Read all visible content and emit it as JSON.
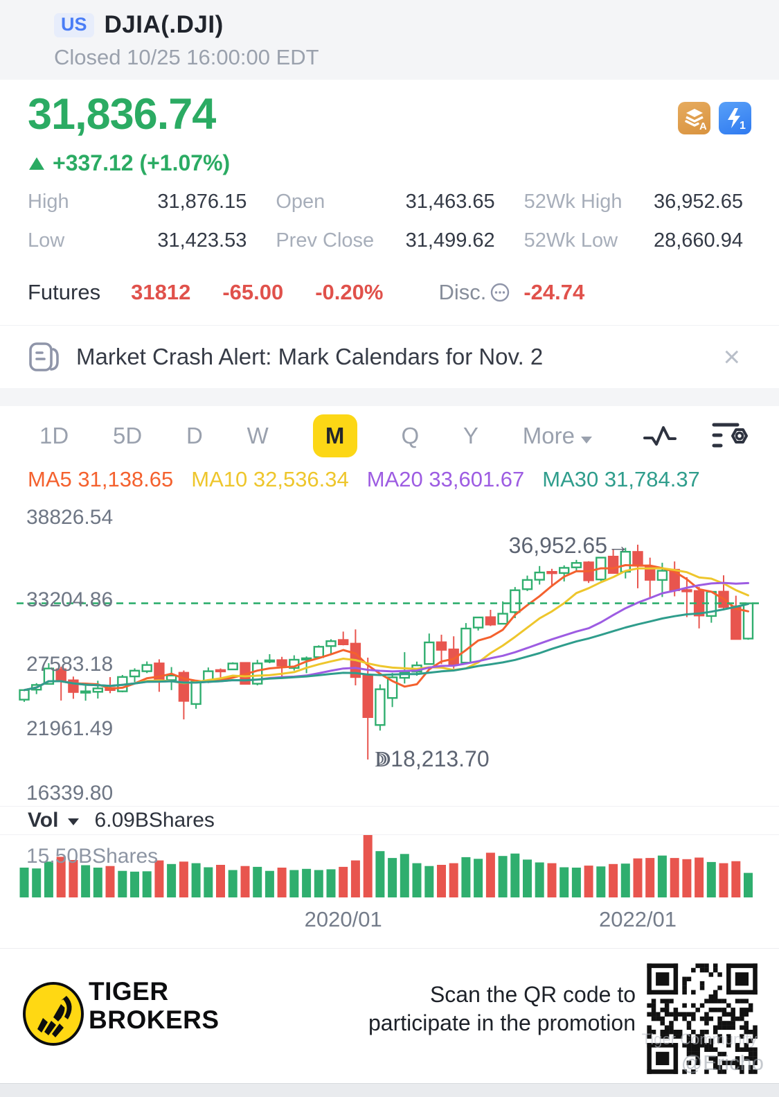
{
  "colors": {
    "up": "#2fae6e",
    "down": "#e8554e",
    "price_green": "#2bab63",
    "futures_red": "#e0514b",
    "accent_yellow": "#fcd716",
    "us_badge_blue": "#4a7df6",
    "axis_text": "#6e7684",
    "annotation_text": "#5d6472"
  },
  "header": {
    "market_badge": "US",
    "title": "DJIA(.DJI)",
    "status": "Closed 10/25 16:00:00 EDT"
  },
  "quote": {
    "price": "31,836.74",
    "direction_icon": "up-triangle",
    "change": "+337.12 (+1.07%)",
    "corner_badges": [
      {
        "name": "data-level-a-badge",
        "text": "A",
        "icon": "layers-icon"
      },
      {
        "name": "lightning-1-badge",
        "text": "1",
        "icon": "lightning-icon"
      }
    ],
    "stats": [
      {
        "label": "High",
        "value": "31,876.15"
      },
      {
        "label": "Open",
        "value": "31,463.65"
      },
      {
        "label": "52Wk High",
        "value": "36,952.65"
      },
      {
        "label": "Low",
        "value": "31,423.53"
      },
      {
        "label": "Prev Close",
        "value": "31,499.62"
      },
      {
        "label": "52Wk Low",
        "value": "28,660.94"
      }
    ],
    "futures": {
      "label": "Futures",
      "price": "31812",
      "change": "-65.00",
      "percent": "-0.20%",
      "disc_label": "Disc.",
      "disc_icon": "ellipsis-circle-icon",
      "disc_value": "-24.74"
    }
  },
  "alert": {
    "icon": "news-icon",
    "text": "Market Crash Alert: Mark Calendars for Nov. 2",
    "close_icon": "×"
  },
  "toolbar": {
    "tabs": [
      {
        "label": "1D"
      },
      {
        "label": "5D"
      },
      {
        "label": "D"
      },
      {
        "label": "W"
      },
      {
        "label": "M",
        "selected": true
      },
      {
        "label": "Q"
      },
      {
        "label": "Y"
      },
      {
        "label": "More",
        "caret": true
      }
    ],
    "icons": [
      {
        "name": "line-chart-style-icon"
      },
      {
        "name": "indicator-settings-icon"
      }
    ]
  },
  "indicators": [
    {
      "name": "MA5",
      "value": "31,138.65",
      "color": "#f4612e"
    },
    {
      "name": "MA10",
      "value": "32,536.34",
      "color": "#eec62c"
    },
    {
      "name": "MA20",
      "value": "33,601.67",
      "color": "#9d5ce2"
    },
    {
      "name": "MA30",
      "value": "31,784.37",
      "color": "#2f9d8c"
    }
  ],
  "chart_data": {
    "type": "candlestick",
    "title": "DJIA monthly candlesticks with MA5/10/20/30 overlays and volume",
    "y_axis_labels": [
      "38826.54",
      "33204.86",
      "27583.18",
      "21961.49",
      "16339.80"
    ],
    "y_axis_values": [
      38826.54,
      33204.86,
      27583.18,
      21961.49,
      16339.8
    ],
    "current_price": 31836.74,
    "current_price_line_style": "dashed-green",
    "annotations": [
      {
        "label": "36,952.65→",
        "index": 50,
        "attach": "high",
        "side": "left"
      },
      {
        "label": "ↇ18,213.70",
        "index": 28,
        "attach": "low",
        "side": "right"
      }
    ],
    "x_axis_labels": [
      {
        "label": "2020/01",
        "index": 26
      },
      {
        "label": "2022/01",
        "index": 50
      }
    ],
    "volume_pane": {
      "label": "Vol",
      "selector": "dropdown",
      "current": "6.09BShares",
      "scale_max_label": "15.50BShares",
      "max_value": 15.5,
      "unit": "BShares"
    },
    "ma_periods": [
      {
        "period": 5,
        "color": "#f4612e"
      },
      {
        "period": 10,
        "color": "#eec62c"
      },
      {
        "period": 20,
        "color": "#9d5ce2"
      },
      {
        "period": 30,
        "color": "#2f9d8c"
      }
    ],
    "candle_fields": [
      "month",
      "open",
      "high",
      "low",
      "close",
      "volume_b_shares"
    ],
    "candles": [
      [
        "2017-11",
        23440,
        24327,
        23242,
        24272,
        7.4
      ],
      [
        "2017-12",
        24306,
        24876,
        23921,
        24719,
        7.2
      ],
      [
        "2018-01",
        24809,
        26617,
        24741,
        26149,
        8.9
      ],
      [
        "2018-02",
        26083,
        26306,
        23360,
        25029,
        10.1
      ],
      [
        "2018-03",
        25122,
        25449,
        23509,
        24103,
        9.3
      ],
      [
        "2018-04",
        24076,
        24859,
        23344,
        24163,
        8.0
      ],
      [
        "2018-05",
        24117,
        25086,
        23531,
        24416,
        7.4
      ],
      [
        "2018-06",
        24462,
        25402,
        23997,
        24271,
        7.8
      ],
      [
        "2018-07",
        24161,
        25587,
        24077,
        25415,
        6.6
      ],
      [
        "2018-08",
        25461,
        26167,
        24965,
        25965,
        6.4
      ],
      [
        "2018-09",
        25916,
        26770,
        25754,
        26458,
        6.5
      ],
      [
        "2018-10",
        26598,
        26952,
        24122,
        25116,
        9.2
      ],
      [
        "2018-11",
        25142,
        26277,
        24268,
        25538,
        8.3
      ],
      [
        "2018-12",
        25780,
        25980,
        21713,
        23327,
        8.9
      ],
      [
        "2019-01",
        23058,
        25110,
        22638,
        24999,
        8.5
      ],
      [
        "2019-02",
        25026,
        26241,
        24883,
        25916,
        7.5
      ],
      [
        "2019-03",
        26019,
        26155,
        25208,
        25929,
        8.1
      ],
      [
        "2019-04",
        26075,
        26696,
        26062,
        26593,
        6.8
      ],
      [
        "2019-05",
        26639,
        26689,
        24809,
        24815,
        7.8
      ],
      [
        "2019-06",
        24830,
        26907,
        24680,
        26600,
        7.6
      ],
      [
        "2019-07",
        26805,
        27399,
        26616,
        26864,
        6.6
      ],
      [
        "2019-08",
        26879,
        27175,
        25339,
        26403,
        7.4
      ],
      [
        "2019-09",
        26198,
        27306,
        25978,
        26917,
        6.8
      ],
      [
        "2019-10",
        26962,
        27204,
        25743,
        27046,
        7.1
      ],
      [
        "2019-11",
        27142,
        28174,
        27142,
        28051,
        6.8
      ],
      [
        "2019-12",
        28109,
        28701,
        27325,
        28538,
        7.0
      ],
      [
        "2020-01",
        28639,
        29373,
        28169,
        28256,
        7.6
      ],
      [
        "2020-02",
        28320,
        29568,
        24681,
        25409,
        9.2
      ],
      [
        "2020-03",
        25591,
        27102,
        18214,
        21917,
        15.5
      ],
      [
        "2020-04",
        21227,
        24765,
        20735,
        24346,
        11.5
      ],
      [
        "2020-05",
        23581,
        25758,
        22790,
        25383,
        9.8
      ],
      [
        "2020-06",
        25343,
        27580,
        24843,
        25813,
        10.8
      ],
      [
        "2020-07",
        25880,
        26754,
        25523,
        26428,
        8.5
      ],
      [
        "2020-08",
        26543,
        29201,
        26500,
        28430,
        7.8
      ],
      [
        "2020-09",
        28439,
        29100,
        26537,
        27782,
        8.1
      ],
      [
        "2020-10",
        27816,
        28959,
        26144,
        26502,
        8.5
      ],
      [
        "2020-11",
        26662,
        30117,
        26512,
        29639,
        10.0
      ],
      [
        "2020-12",
        29722,
        30638,
        29464,
        30606,
        9.6
      ],
      [
        "2021-01",
        30628,
        31272,
        29857,
        29983,
        11.1
      ],
      [
        "2021-02",
        30055,
        32010,
        30015,
        30932,
        10.3
      ],
      [
        "2021-03",
        31069,
        33259,
        30547,
        32982,
        10.9
      ],
      [
        "2021-04",
        33073,
        34256,
        32906,
        33875,
        9.4
      ],
      [
        "2021-05",
        33896,
        35092,
        33474,
        34529,
        8.7
      ],
      [
        "2021-06",
        34584,
        34849,
        33272,
        34503,
        8.5
      ],
      [
        "2021-07",
        34480,
        35150,
        33742,
        34935,
        7.5
      ],
      [
        "2021-08",
        34975,
        35631,
        34690,
        35361,
        7.4
      ],
      [
        "2021-09",
        35411,
        35516,
        33613,
        33844,
        7.9
      ],
      [
        "2021-10",
        33917,
        35893,
        33785,
        35820,
        7.7
      ],
      [
        "2021-11",
        35913,
        36566,
        34425,
        34484,
        8.3
      ],
      [
        "2021-12",
        34596,
        36680,
        34007,
        36338,
        8.4
      ],
      [
        "2022-01",
        36321,
        36952,
        33151,
        35132,
        9.7
      ],
      [
        "2022-02",
        35051,
        35824,
        32272,
        33893,
        9.8
      ],
      [
        "2022-03",
        33877,
        35372,
        32387,
        34678,
        10.4
      ],
      [
        "2022-04",
        34772,
        35492,
        32450,
        32977,
        9.8
      ],
      [
        "2022-05",
        32997,
        34118,
        30636,
        32990,
        9.5
      ],
      [
        "2022-06",
        32913,
        33272,
        29653,
        30775,
        9.9
      ],
      [
        "2022-07",
        30733,
        32885,
        30145,
        32845,
        8.8
      ],
      [
        "2022-08",
        32854,
        34281,
        31227,
        31510,
        8.5
      ],
      [
        "2022-09",
        31580,
        32505,
        28716,
        28726,
        9.0
      ],
      [
        "2022-10",
        28758,
        31876,
        28661,
        31837,
        6.09
      ]
    ]
  },
  "footer": {
    "brand_line1": "TIGER",
    "brand_line2": "BROKERS",
    "promo_line1": "Scan the QR code to",
    "promo_line2": "participate in the promotion",
    "qr_watermark": "Tiger Community"
  },
  "watermark": "@Ericho"
}
